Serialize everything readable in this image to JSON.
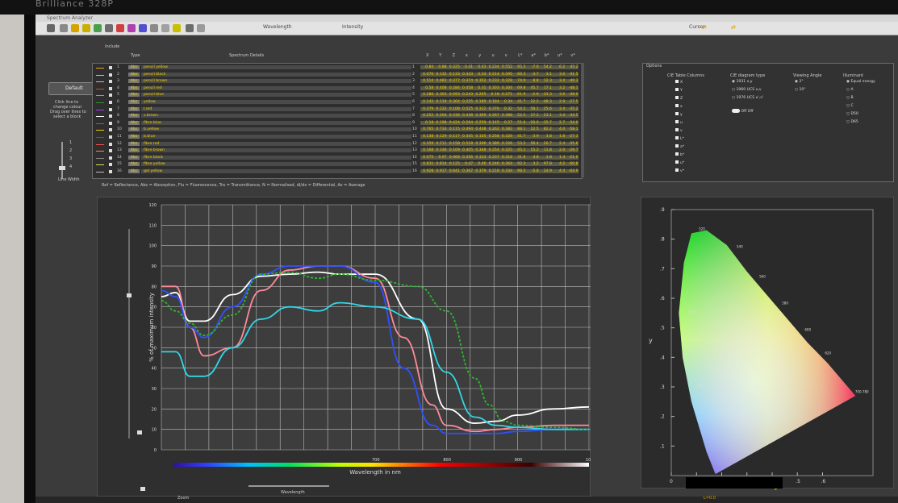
{
  "brand": "Brilliance 328P",
  "app": {
    "title": "Spectrum Analyzer"
  },
  "toolbar": {
    "wavelength_label": "Wavelength",
    "intensity_label": "Intensity",
    "cursor_label": "Cursor"
  },
  "sidebar": {
    "default_label": "Default",
    "instructions": [
      "Click line to",
      "change colour",
      "Drag over lines to",
      "select a block"
    ],
    "line_width_label": "Line Width",
    "line_width_options": [
      "1",
      "2",
      "3",
      "4"
    ]
  },
  "table": {
    "include_label": "Include",
    "type_header": "Type",
    "details_header": "Spectrum Details",
    "value_headers": [
      "X",
      "Y",
      "Z",
      "x",
      "y",
      "u",
      "v",
      "L*",
      "a*",
      "b*",
      "u*",
      "v*"
    ],
    "rows": [
      {
        "n": "1",
        "type": "Abs",
        "name": "pencil yellow",
        "color": "#f0a020",
        "values": [
          "0.84",
          "0.88",
          "0.325",
          "0.41",
          "0.43",
          "0.234",
          "0.552",
          "95.2",
          "-7.6",
          "54.2",
          "6.2",
          "45.2"
        ]
      },
      {
        "n": "2",
        "type": "Abs",
        "name": "pencil black",
        "color": "#bbbbbb",
        "values": [
          "0.070",
          "0.132",
          "0.133",
          "0.343",
          "0.34",
          "0.214",
          "0.395",
          "60.3",
          "-3.7",
          "3.1",
          "3.0",
          "-41.5"
        ]
      },
      {
        "n": "3",
        "type": "Abs",
        "name": "pencil brown",
        "color": "#f4a3c0",
        "values": [
          "0.514",
          "0.483",
          "0.377",
          "0.374",
          "0.352",
          "0.232",
          "0.328",
          "74.9",
          "8.8",
          "12.3",
          "3.4",
          "-40.3"
        ]
      },
      {
        "n": "4",
        "type": "Abs",
        "name": "pencil red",
        "color": "#e04040",
        "values": [
          "0.58",
          "0.408",
          "0.284",
          "0.458",
          "0.31",
          "0.303",
          "0.304",
          "69.8",
          "45.7",
          "17.1",
          "3.2",
          "-48.1"
        ]
      },
      {
        "n": "5",
        "type": "Abs",
        "name": "pencil blue",
        "color": "#30c0e0",
        "values": [
          "0.286",
          "0.303",
          "0.593",
          "0.243",
          "0.265",
          "0.18",
          "0.271",
          "61.9",
          "-2.6",
          "-33.3",
          "3.6",
          "-48.0"
        ]
      },
      {
        "n": "6",
        "type": "Abs",
        "name": "yellow",
        "color": "#2a9a2a",
        "values": [
          "0.142",
          "0.119",
          "0.364",
          "0.225",
          "0.189",
          "0.184",
          "0.34",
          "41.7",
          "12.2",
          "-48.3",
          "2.9",
          "-27.5"
        ]
      },
      {
        "n": "7",
        "type": "Abs",
        "name": "l.red",
        "color": "#a040ff",
        "values": [
          "0.379",
          "0.232",
          "0.108",
          "0.525",
          "0.312",
          "0.376",
          "0.32",
          "54.2",
          "58.1",
          "25.6",
          "3.4",
          "-35.2"
        ]
      },
      {
        "n": "8",
        "type": "Abs",
        "name": "s.brown",
        "color": "#ffffff",
        "values": [
          "0.252",
          "0.204",
          "0.336",
          "0.438",
          "0.369",
          "0.267",
          "0.388",
          "52.5",
          "17.2",
          "23.1",
          "3.4",
          "-34.5"
        ]
      },
      {
        "n": "9",
        "type": "Abs",
        "name": "fibre blue",
        "color": "#cc3388",
        "values": [
          "0.18",
          "0.198",
          "0.424",
          "0.204",
          "0.259",
          "0.145",
          "0.27",
          "51.6",
          "-20.0",
          "-35.7",
          "2.7",
          "-34.0"
        ]
      },
      {
        "n": "10",
        "type": "Abs",
        "name": "b.yellow",
        "color": "#f0d000",
        "values": [
          "0.765",
          "0.733",
          "0.115",
          "0.494",
          "0.448",
          "0.262",
          "0.382",
          "88.1",
          "12.5",
          "82.2",
          "4.0",
          "-58.1"
        ]
      },
      {
        "n": "11",
        "type": "Abs",
        "name": "b.blue",
        "color": "#3050ff",
        "values": [
          "0.138",
          "0.129",
          "0.117",
          "0.345",
          "0.105",
          "0.258",
          "0.326",
          "41.7",
          "3.9",
          "3.8",
          "1.8",
          "-27.3"
        ]
      },
      {
        "n": "12",
        "type": "Abs",
        "name": "fibre red",
        "color": "#ff5050",
        "values": [
          "0.359",
          "0.211",
          "0.158",
          "0.518",
          "0.306",
          "0.389",
          "0.326",
          "53.2",
          "56.4",
          "20.7",
          "2.4",
          "-35.6"
        ]
      },
      {
        "n": "13",
        "type": "Abs",
        "name": "fibre brown",
        "color": "#ff9030",
        "values": [
          "0.168",
          "0.146",
          "0.109",
          "0.405",
          "0.348",
          "0.254",
          "0.325",
          "45.1",
          "15.2",
          "11.8",
          "2.0",
          "-29.7"
        ]
      },
      {
        "n": "14",
        "type": "Abs",
        "name": "fibre black",
        "color": "#888888",
        "values": [
          "0.075",
          "0.07",
          "0.068",
          "0.356",
          "0.333",
          "0.237",
          "0.318",
          "31.8",
          "4.8",
          "1.8",
          "1.4",
          "-21.0"
        ]
      },
      {
        "n": "15",
        "type": "Abs",
        "name": "fibre yellow",
        "color": "#e0e060",
        "values": [
          "0.831",
          "0.814",
          "0.125",
          "0.47",
          "0.46",
          "0.246",
          "0.364",
          "92.3",
          "3.2",
          "97.8",
          "4.2",
          "-60.8"
        ]
      },
      {
        "n": "16",
        "type": "Abs",
        "name": "gel yellow",
        "color": "#c0c0c0",
        "values": [
          "0.928",
          "0.917",
          "0.641",
          "0.367",
          "0.379",
          "0.218",
          "0.334",
          "98.3",
          "-5.8",
          "24.9",
          "4.4",
          "-64.9"
        ]
      }
    ],
    "legend_note": "Ref = Reflectance, Abs = Absorption, Flu = Fluorescence, Tra = Transmittance, N = Normalised, dI/dx = Differential, Av = Average"
  },
  "options": {
    "title": "Options",
    "cie_columns_label": "CIE Table Columns",
    "columns": [
      "X",
      "Y",
      "Z",
      "x",
      "y",
      "u",
      "v",
      "L*",
      "a*",
      "b*",
      "u*",
      "v*"
    ],
    "diagram_type_label": "CIE diagram type",
    "diagram_types": [
      "1931 x,y",
      "1960 UCS u,v",
      "1976 UCS u',v'"
    ],
    "toggle_label": "Off Off",
    "viewing_angle_label": "Viewing Angle",
    "angles": [
      "2°",
      "10°"
    ],
    "illuminant_label": "Illuminant",
    "illuminants": [
      "Equal energy",
      "A",
      "B",
      "C",
      "D50",
      "D65"
    ]
  },
  "chart_data": {
    "type": "line",
    "xlabel": "Wavelength in nm",
    "ylabel": "% of maximum intensity",
    "xlim": [
      400,
      1000
    ],
    "ylim": [
      0,
      120
    ],
    "x_ticks": [
      "400",
      "500",
      "600",
      "700",
      "800",
      "900",
      "1000"
    ],
    "y_ticks": [
      "0",
      "10",
      "20",
      "30",
      "40",
      "50",
      "60",
      "70",
      "80",
      "90",
      "100",
      "110",
      "120"
    ],
    "x_tick_labels_printed": [
      "700",
      "800",
      "900",
      "1000"
    ],
    "series": [
      {
        "color": "#ffffff",
        "dashed": false,
        "x": [
          400,
          420,
          440,
          460,
          500,
          540,
          580,
          620,
          650,
          700,
          760,
          800,
          840,
          870,
          900,
          950,
          1000
        ],
        "y": [
          75,
          77,
          63,
          63,
          76,
          85,
          86,
          87,
          86,
          86,
          64,
          20,
          13,
          14,
          17,
          20,
          21
        ]
      },
      {
        "color": "#ff8a9a",
        "dashed": false,
        "x": [
          400,
          420,
          440,
          460,
          500,
          540,
          580,
          620,
          650,
          700,
          740,
          780,
          800,
          840,
          870,
          900,
          950,
          1000
        ],
        "y": [
          80,
          80,
          60,
          46,
          50,
          78,
          88,
          90,
          90,
          84,
          55,
          22,
          12,
          9,
          10,
          11,
          12,
          12
        ]
      },
      {
        "color": "#3050ff",
        "dashed": false,
        "x": [
          400,
          420,
          440,
          460,
          500,
          540,
          580,
          620,
          650,
          700,
          740,
          780,
          800,
          840,
          870,
          900,
          950,
          1000
        ],
        "y": [
          78,
          75,
          60,
          55,
          70,
          86,
          90,
          90,
          90,
          82,
          40,
          12,
          8,
          8,
          8,
          9,
          10,
          10
        ]
      },
      {
        "color": "#30d8e8",
        "dashed": false,
        "x": [
          400,
          420,
          440,
          460,
          500,
          540,
          580,
          620,
          650,
          700,
          760,
          800,
          840,
          870,
          900,
          950,
          1000
        ],
        "y": [
          48,
          48,
          36,
          36,
          50,
          64,
          70,
          68,
          72,
          70,
          64,
          38,
          16,
          12,
          11,
          10,
          10
        ]
      },
      {
        "color": "#2db82d",
        "dashed": true,
        "x": [
          400,
          420,
          440,
          460,
          500,
          540,
          580,
          620,
          650,
          700,
          760,
          800,
          840,
          860,
          880,
          900,
          950,
          1000
        ],
        "y": [
          73,
          68,
          62,
          56,
          66,
          86,
          87,
          84,
          86,
          83,
          80,
          68,
          35,
          22,
          14,
          12,
          11,
          10
        ]
      }
    ]
  },
  "cie": {
    "x_axis_label": "x",
    "y_axis_label": "y",
    "x_ticks": [
      "0",
      ".1",
      ".2",
      ".3",
      ".4",
      ".5",
      ".6"
    ],
    "y_ticks": [
      ".1",
      ".2",
      ".3",
      ".4",
      ".5",
      ".6",
      ".7",
      ".8",
      ".9"
    ],
    "wavelength_marks": [
      "480",
      "500",
      "520",
      "540",
      "560",
      "580",
      "600",
      "620",
      "700-780"
    ]
  },
  "bottom": {
    "zoom_label": "Zoom",
    "wavelength_slider_label": "Wavelength",
    "lab_value": "L=0.0"
  }
}
